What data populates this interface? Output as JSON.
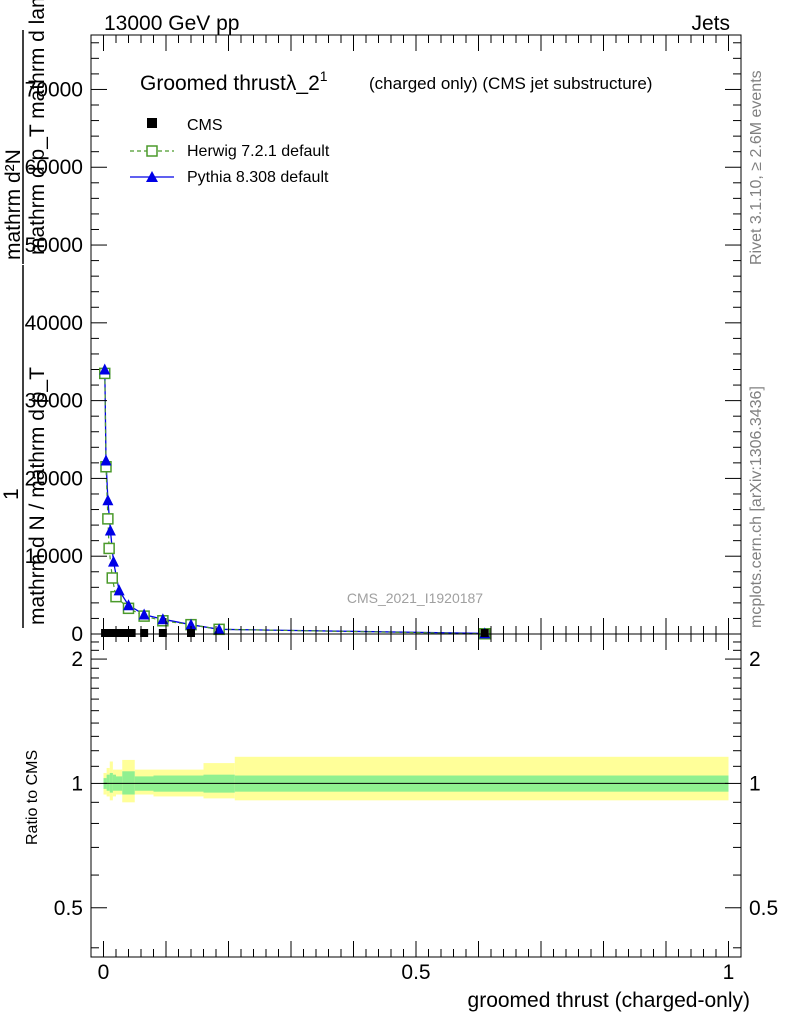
{
  "header": {
    "energy_label": "13000 GeV pp",
    "process_label": "Jets"
  },
  "side_labels": {
    "rivet": "Rivet 3.1.10, ≥ 2.6M events",
    "mcplots": "mcplots.cern.ch [arXiv:1306.3436]"
  },
  "chart_data": [
    {
      "type": "scatter",
      "title": "Groomed thrustλ_2",
      "title_superscript": "1",
      "subtitle": "(charged only) (CMS jet substructure)",
      "watermark": "CMS_2021_I1920187",
      "ylabel_lines": [
        "mathrm d²N",
        "mathrm d p_T mathrm d lambda",
        "1",
        "mathrm d N / mathrm d p_T"
      ],
      "xlim": [
        -0.02,
        1.02
      ],
      "ylim": [
        0,
        77000
      ],
      "y_ticks": [
        0,
        10000,
        20000,
        30000,
        40000,
        50000,
        60000,
        70000
      ],
      "legend_position": "top-left",
      "series": [
        {
          "name": "CMS",
          "color": "#000000",
          "marker": "filled-square",
          "x": [
            0.0025,
            0.0075,
            0.0125,
            0.0175,
            0.025,
            0.035,
            0.045,
            0.065,
            0.095,
            0.14,
            0.61
          ],
          "y": [
            0,
            0,
            0,
            0,
            0,
            0,
            0,
            0,
            0,
            0,
            0
          ]
        },
        {
          "name": "Herwig 7.2.1 default",
          "color": "#4b9a2b",
          "marker": "open-square",
          "line": "dashed",
          "x": [
            0.002,
            0.004,
            0.007,
            0.009,
            0.014,
            0.02,
            0.04,
            0.065,
            0.095,
            0.14,
            0.185,
            0.61
          ],
          "y": [
            33500,
            21500,
            14800,
            11000,
            7200,
            4800,
            3300,
            2300,
            1700,
            1200,
            600,
            30
          ]
        },
        {
          "name": "Pythia 8.308 default",
          "color": "#0000e6",
          "marker": "filled-triangle",
          "line": "solid",
          "x": [
            0.002,
            0.004,
            0.007,
            0.011,
            0.016,
            0.025,
            0.04,
            0.065,
            0.095,
            0.14,
            0.185,
            0.61
          ],
          "y": [
            34000,
            22300,
            17200,
            13300,
            9300,
            5600,
            3700,
            2500,
            1900,
            1200,
            600,
            80
          ]
        }
      ]
    },
    {
      "type": "area",
      "ylabel": "Ratio to CMS",
      "xlabel": "groomed thrust (charged-only)",
      "xlim": [
        -0.02,
        1.02
      ],
      "ylim": [
        0.38,
        2.3
      ],
      "y_ticks": [
        0.5,
        1,
        2
      ],
      "x_ticks": [
        0,
        0.5,
        1
      ],
      "bin_edges": [
        0,
        0.005,
        0.01,
        0.015,
        0.02,
        0.03,
        0.05,
        0.08,
        0.16,
        0.21,
        1.0
      ],
      "band_inner": {
        "color": "#90f090",
        "low": [
          0.97,
          0.96,
          0.95,
          0.96,
          0.96,
          0.94,
          0.96,
          0.955,
          0.95,
          0.955
        ],
        "high": [
          1.03,
          1.05,
          1.06,
          1.05,
          1.04,
          1.07,
          1.04,
          1.045,
          1.05,
          1.045
        ]
      },
      "band_outer": {
        "color": "#ffff99",
        "low": [
          0.94,
          0.93,
          0.91,
          0.93,
          0.94,
          0.9,
          0.94,
          0.93,
          0.92,
          0.91
        ],
        "high": [
          1.06,
          1.09,
          1.13,
          1.08,
          1.08,
          1.14,
          1.08,
          1.08,
          1.12,
          1.16
        ]
      },
      "reference_value": 1
    }
  ]
}
